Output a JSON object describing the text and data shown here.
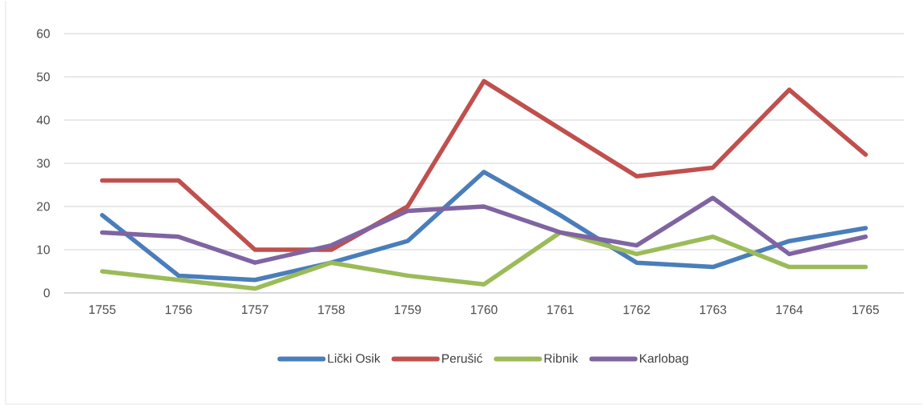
{
  "chart_data": {
    "type": "line",
    "categories": [
      "1755",
      "1756",
      "1757",
      "1758",
      "1759",
      "1760",
      "1761",
      "1762",
      "1763",
      "1764",
      "1765"
    ],
    "series": [
      {
        "name": "Lički Osik",
        "color": "#4a7ebb",
        "values": [
          18,
          4,
          3,
          7,
          12,
          28,
          18,
          7,
          6,
          12,
          15
        ]
      },
      {
        "name": "Perušić",
        "color": "#c0504d",
        "values": [
          26,
          26,
          10,
          10,
          20,
          49,
          38,
          27,
          29,
          47,
          32
        ]
      },
      {
        "name": "Ribnik",
        "color": "#9bbb59",
        "values": [
          5,
          3,
          1,
          7,
          4,
          2,
          14,
          9,
          13,
          6,
          6
        ]
      },
      {
        "name": "Karlobag",
        "color": "#8064a2",
        "values": [
          14,
          13,
          7,
          11,
          19,
          20,
          14,
          11,
          22,
          9,
          13
        ]
      }
    ],
    "ylim": [
      0,
      60
    ],
    "yticks": [
      0,
      10,
      20,
      30,
      40,
      50,
      60
    ],
    "grid": "y",
    "legend": "bottom",
    "marker": "none",
    "line_style": "solid"
  }
}
